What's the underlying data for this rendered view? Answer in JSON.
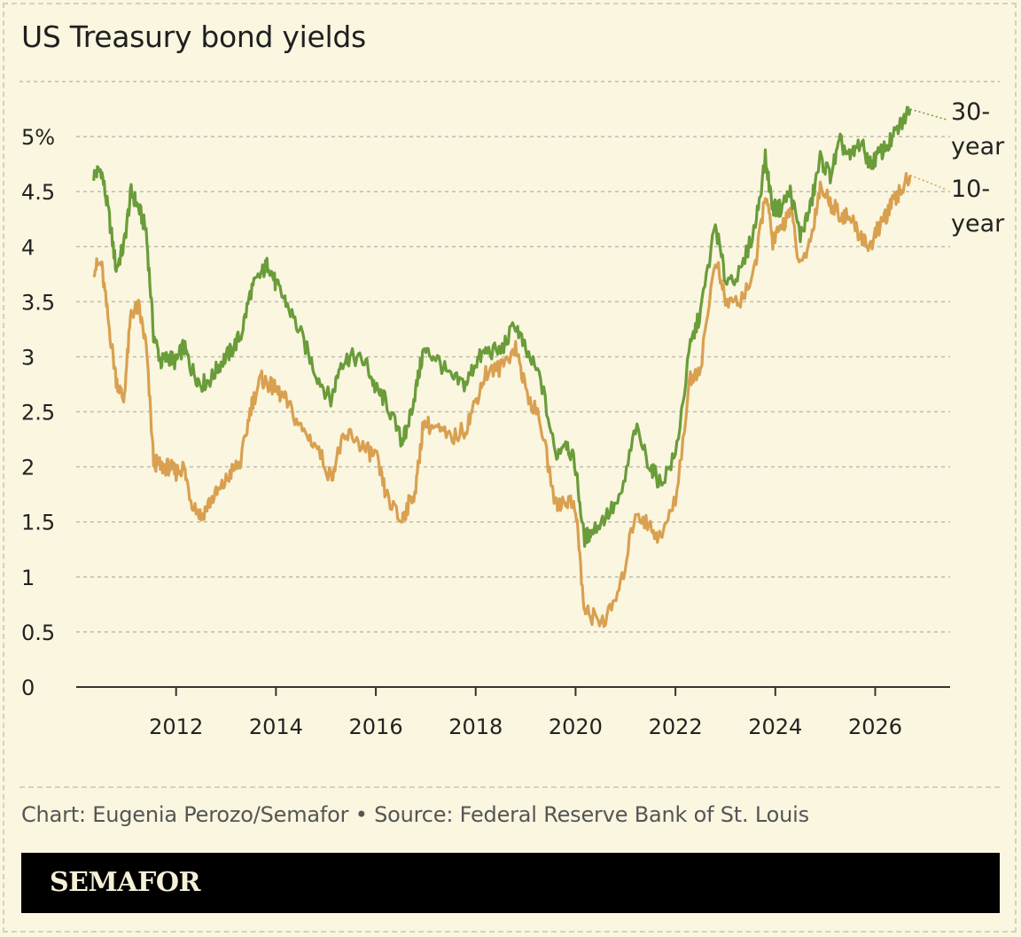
{
  "title": "US Treasury bond yields",
  "caption": "Chart: Eugenia Perozo/Semafor • Source: Federal Reserve Bank of St. Louis",
  "brand": "SEMAFOR",
  "colors": {
    "thirty_year": "#6a9c3a",
    "ten_year": "#d9a050",
    "background": "#faf6e0",
    "grid": "#bdbdb0"
  },
  "chart_data": {
    "type": "line",
    "title": "US Treasury bond yields",
    "xlabel": "",
    "ylabel": "",
    "xlim": [
      2010.0,
      2027.5
    ],
    "ylim": [
      0,
      5.5
    ],
    "y_ticks": [
      0,
      0.5,
      1,
      1.5,
      2,
      2.5,
      3,
      3.5,
      4,
      4.5,
      5
    ],
    "y_tick_labels": [
      "0",
      "0.5",
      "1",
      "1.5",
      "2",
      "2.5",
      "3",
      "3.5",
      "4",
      "4.5",
      "5%"
    ],
    "x_ticks": [
      2012,
      2014,
      2016,
      2018,
      2020,
      2022,
      2024,
      2026
    ],
    "x_tick_labels": [
      "2012",
      "2014",
      "2016",
      "2018",
      "2020",
      "2022",
      "2024",
      "2026"
    ],
    "grid": true,
    "legend": "inline-right",
    "series": [
      {
        "name": "30-year",
        "label_lines": [
          "30-",
          "year"
        ],
        "x": [
          2010.35,
          2010.5,
          2010.65,
          2010.8,
          2010.95,
          2011.1,
          2011.25,
          2011.4,
          2011.55,
          2011.7,
          2011.85,
          2012.0,
          2012.15,
          2012.3,
          2012.5,
          2012.7,
          2012.9,
          2013.1,
          2013.3,
          2013.5,
          2013.7,
          2013.85,
          2014.0,
          2014.2,
          2014.5,
          2014.8,
          2015.1,
          2015.3,
          2015.5,
          2015.8,
          2016.0,
          2016.2,
          2016.5,
          2016.6,
          2016.8,
          2016.95,
          2017.2,
          2017.5,
          2017.8,
          2018.0,
          2018.2,
          2018.5,
          2018.8,
          2019.0,
          2019.3,
          2019.6,
          2019.8,
          2020.0,
          2020.17,
          2020.3,
          2020.6,
          2020.9,
          2021.2,
          2021.5,
          2021.7,
          2022.0,
          2022.3,
          2022.5,
          2022.8,
          2023.0,
          2023.3,
          2023.6,
          2023.8,
          2023.95,
          2024.1,
          2024.3,
          2024.5,
          2024.7,
          2024.9,
          2025.1,
          2025.3,
          2025.5,
          2025.7,
          2025.9,
          2026.1,
          2026.3,
          2026.5,
          2026.7
        ],
        "values": [
          4.65,
          4.7,
          4.3,
          3.8,
          4.0,
          4.5,
          4.35,
          4.15,
          3.2,
          2.95,
          3.0,
          2.95,
          3.1,
          2.9,
          2.75,
          2.8,
          2.95,
          3.05,
          3.2,
          3.6,
          3.75,
          3.85,
          3.65,
          3.5,
          3.2,
          2.85,
          2.6,
          2.95,
          3.0,
          2.95,
          2.7,
          2.6,
          2.25,
          2.3,
          2.7,
          3.05,
          3.0,
          2.8,
          2.75,
          2.95,
          3.05,
          3.05,
          3.3,
          3.05,
          2.8,
          2.1,
          2.25,
          2.0,
          1.35,
          1.4,
          1.55,
          1.7,
          2.35,
          2.0,
          1.85,
          2.1,
          3.1,
          3.4,
          4.2,
          3.7,
          3.75,
          4.2,
          4.8,
          4.35,
          4.35,
          4.5,
          4.1,
          4.35,
          4.8,
          4.65,
          4.95,
          4.8,
          4.95,
          4.75,
          4.85,
          4.95,
          5.1,
          5.25
        ]
      },
      {
        "name": "10-year",
        "label_lines": [
          "10-",
          "year"
        ],
        "x": [
          2010.35,
          2010.5,
          2010.65,
          2010.8,
          2010.95,
          2011.1,
          2011.25,
          2011.4,
          2011.55,
          2011.7,
          2011.85,
          2012.0,
          2012.15,
          2012.3,
          2012.5,
          2012.7,
          2012.9,
          2013.1,
          2013.3,
          2013.5,
          2013.7,
          2013.85,
          2014.0,
          2014.2,
          2014.5,
          2014.8,
          2015.1,
          2015.3,
          2015.5,
          2015.8,
          2016.0,
          2016.2,
          2016.5,
          2016.6,
          2016.8,
          2016.95,
          2017.2,
          2017.5,
          2017.8,
          2018.0,
          2018.2,
          2018.5,
          2018.8,
          2019.0,
          2019.3,
          2019.6,
          2019.8,
          2020.0,
          2020.17,
          2020.3,
          2020.6,
          2020.9,
          2021.2,
          2021.5,
          2021.7,
          2022.0,
          2022.3,
          2022.5,
          2022.8,
          2023.0,
          2023.3,
          2023.6,
          2023.8,
          2023.95,
          2024.1,
          2024.3,
          2024.5,
          2024.7,
          2024.9,
          2025.1,
          2025.3,
          2025.5,
          2025.7,
          2025.9,
          2026.1,
          2026.3,
          2026.5,
          2026.7
        ],
        "values": [
          3.8,
          3.85,
          3.3,
          2.8,
          2.6,
          3.4,
          3.45,
          3.1,
          2.05,
          2.0,
          2.0,
          1.95,
          2.0,
          1.7,
          1.55,
          1.7,
          1.8,
          1.95,
          2.05,
          2.55,
          2.8,
          2.75,
          2.7,
          2.6,
          2.35,
          2.2,
          1.9,
          2.2,
          2.3,
          2.15,
          2.1,
          1.75,
          1.5,
          1.6,
          1.8,
          2.4,
          2.35,
          2.25,
          2.35,
          2.6,
          2.85,
          2.9,
          3.1,
          2.7,
          2.4,
          1.65,
          1.7,
          1.65,
          0.7,
          0.65,
          0.6,
          0.9,
          1.6,
          1.45,
          1.35,
          1.7,
          2.8,
          2.9,
          3.9,
          3.5,
          3.5,
          3.8,
          4.5,
          4.05,
          4.15,
          4.35,
          3.8,
          4.05,
          4.55,
          4.4,
          4.3,
          4.25,
          4.1,
          4.0,
          4.2,
          4.35,
          4.5,
          4.65
        ]
      }
    ]
  }
}
